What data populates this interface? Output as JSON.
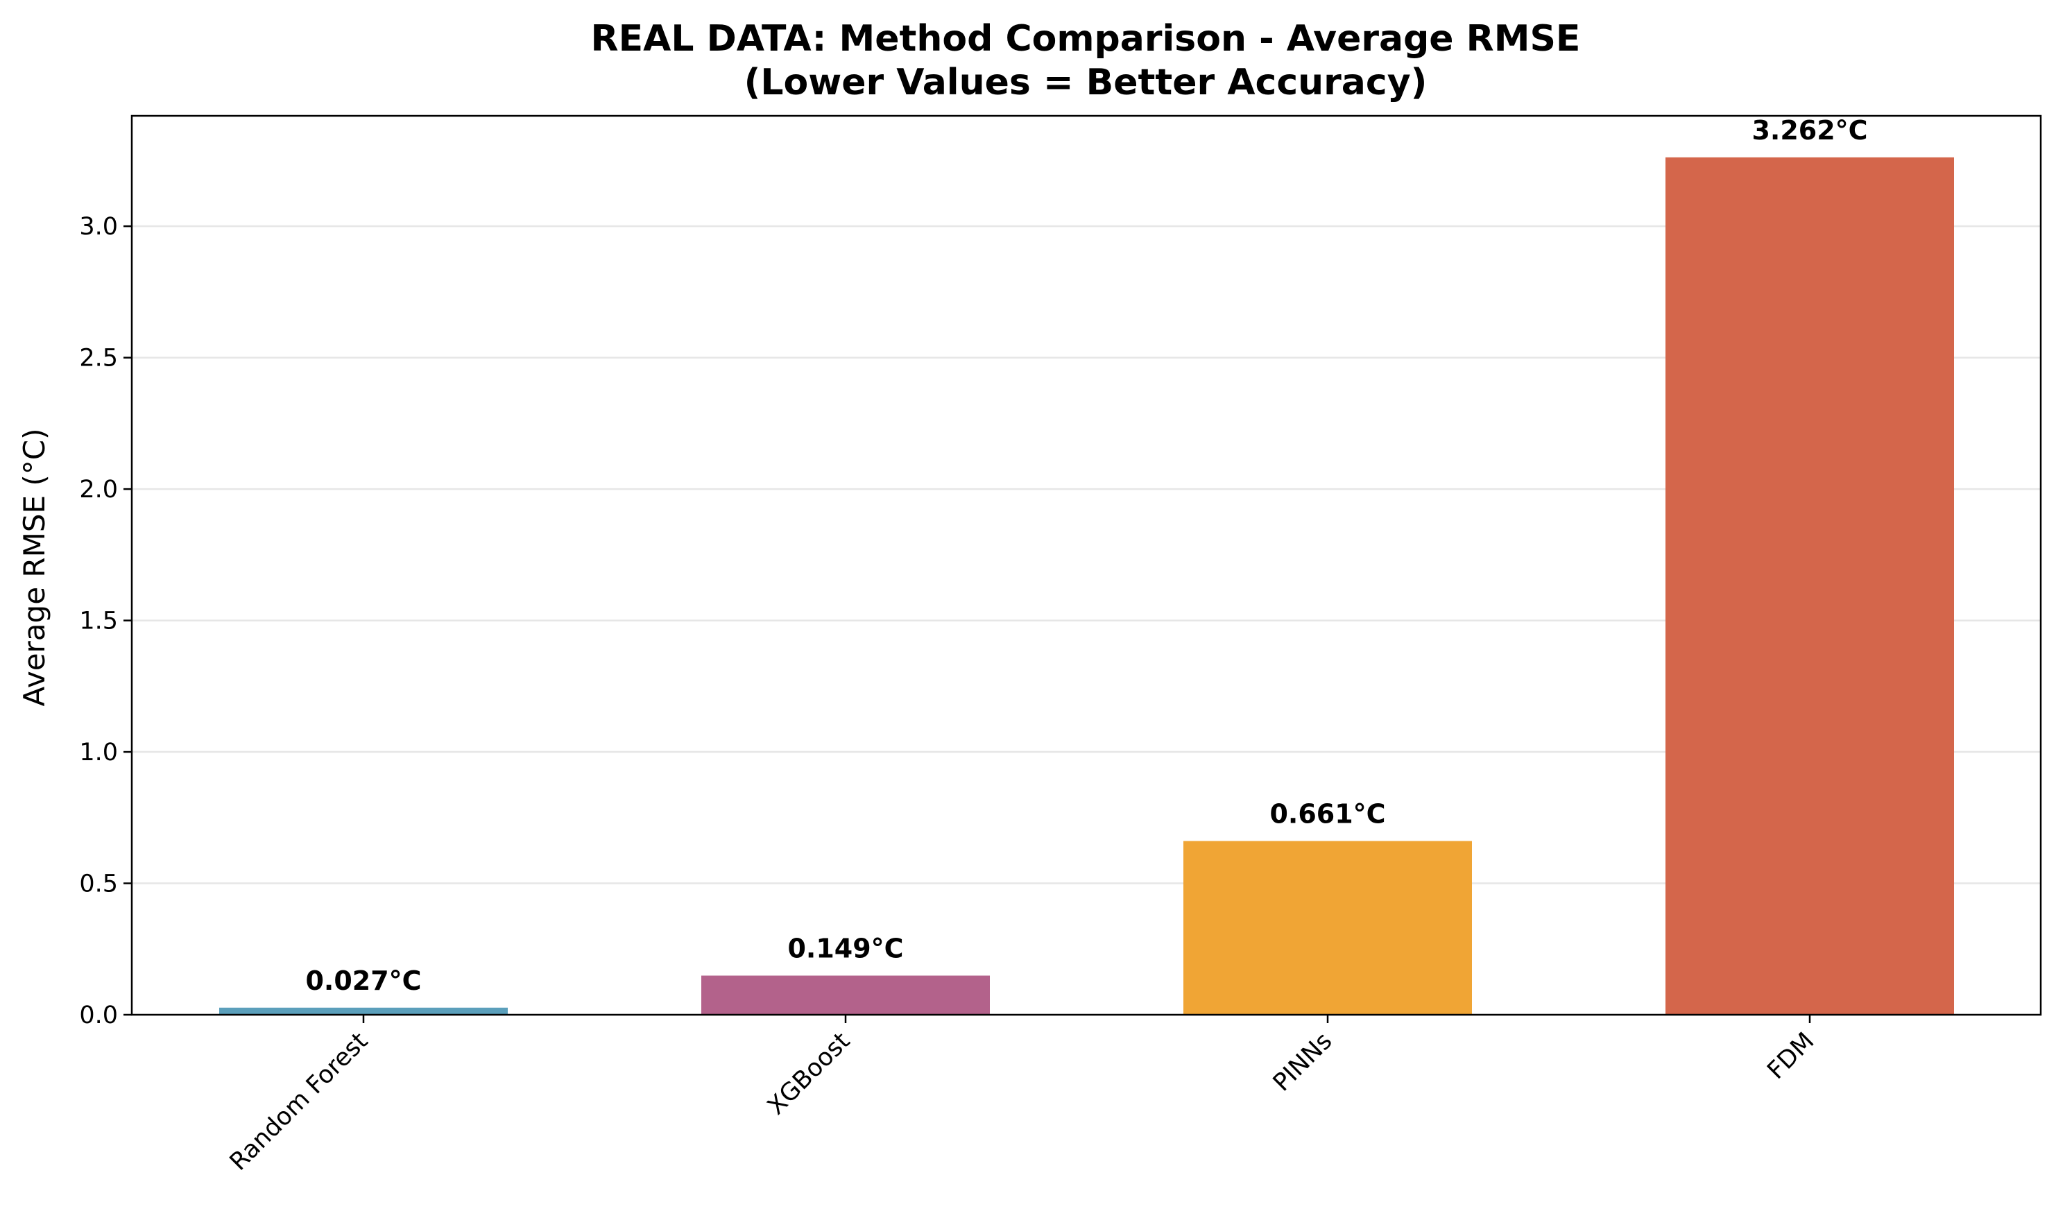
{
  "chart_data": {
    "type": "bar",
    "title": "REAL DATA: Method Comparison - Average RMSE",
    "subtitle": "(Lower Values = Better Accuracy)",
    "xlabel": "",
    "ylabel": "Average RMSE (°C)",
    "categories": [
      "Random Forest",
      "XGBoost",
      "PINNs",
      "FDM"
    ],
    "values": [
      0.027,
      0.149,
      0.661,
      3.262
    ],
    "value_labels": [
      "0.027°C",
      "0.149°C",
      "0.661°C",
      "3.262°C"
    ],
    "colors": [
      "#5b9fbb",
      "#b3628b",
      "#f0a535",
      "#d4664b"
    ],
    "ylim": [
      0,
      3.42
    ],
    "yticks": [
      0.0,
      0.5,
      1.0,
      1.5,
      2.0,
      2.5,
      3.0
    ],
    "ytick_labels": [
      "0.0",
      "0.5",
      "1.0",
      "1.5",
      "2.0",
      "2.5",
      "3.0"
    ],
    "grid": "y",
    "legend": "none"
  }
}
